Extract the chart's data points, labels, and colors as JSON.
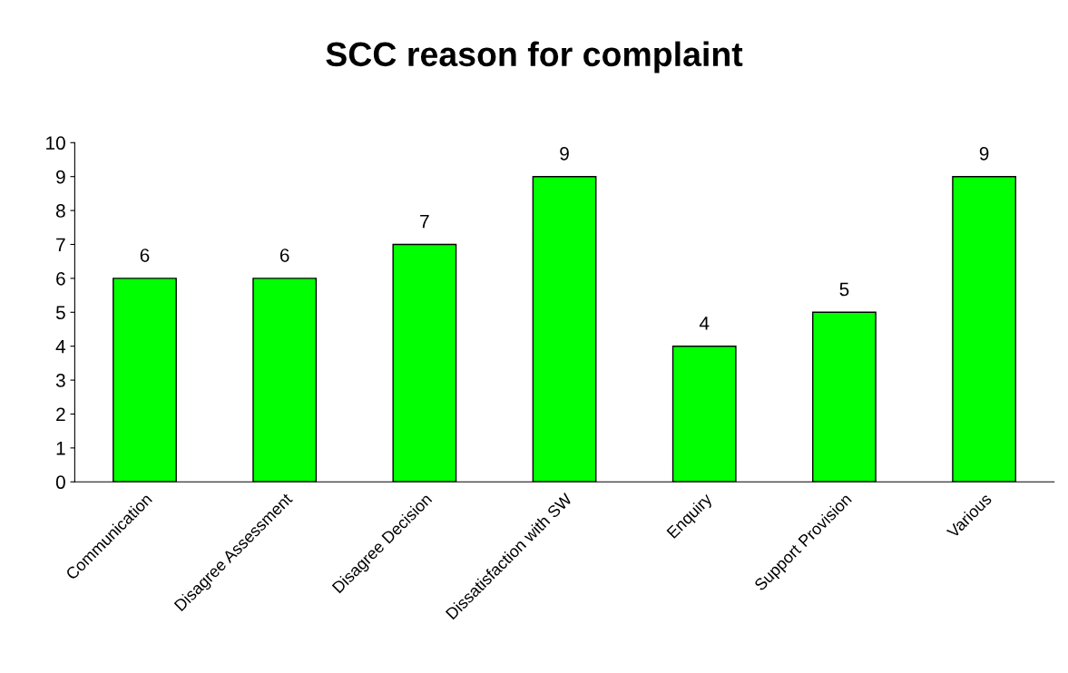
{
  "chart_data": {
    "type": "bar",
    "title": "SCC reason for complaint",
    "categories": [
      "Communication",
      "Disagree Assessment",
      "Disagree Decision",
      "Dissatisfaction with SW",
      "Enquiry",
      "Support Provision",
      "Various"
    ],
    "values": [
      6,
      6,
      7,
      9,
      4,
      5,
      9
    ],
    "color": "#00ff00",
    "ylim": [
      0,
      10
    ],
    "yticks": [
      0,
      1,
      2,
      3,
      4,
      5,
      6,
      7,
      8,
      9,
      10
    ],
    "grid": false,
    "data_labels": true
  }
}
